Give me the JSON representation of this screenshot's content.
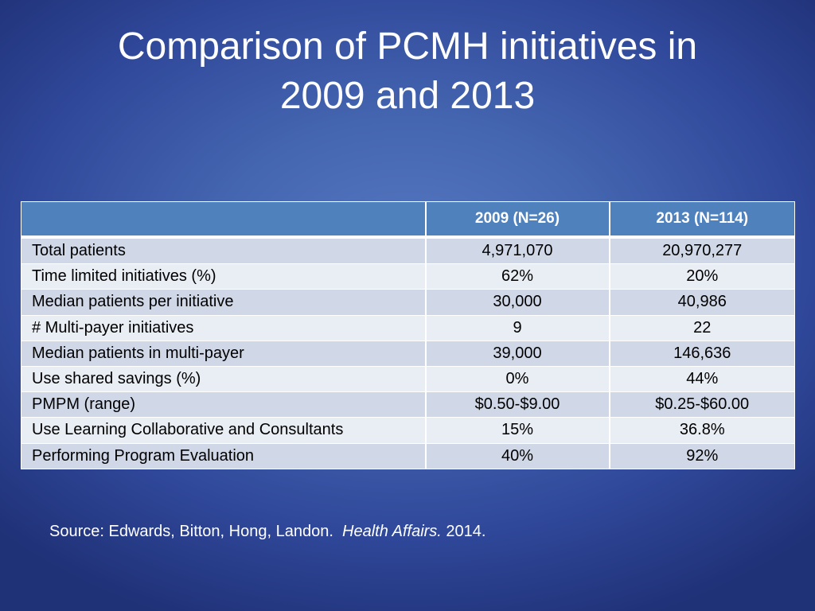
{
  "slide": {
    "title_line1": "Comparison of PCMH initiatives in",
    "title_line2": "2009 and 2013"
  },
  "table": {
    "headers": [
      "",
      "2009 (N=26)",
      "2013 (N=114)"
    ],
    "rows": [
      [
        "Total patients",
        "4,971,070",
        "20,970,277"
      ],
      [
        "Time limited initiatives (%)",
        "62%",
        "20%"
      ],
      [
        "Median patients per initiative",
        "30,000",
        "40,986"
      ],
      [
        "# Multi-payer initiatives",
        "9",
        "22"
      ],
      [
        "Median patients in multi-payer",
        "39,000",
        "146,636"
      ],
      [
        "Use shared savings (%)",
        "0%",
        "44%"
      ],
      [
        "PMPM (range)",
        "$0.50-$9.00",
        "$0.25-$60.00"
      ],
      [
        "Use Learning Collaborative and Consultants",
        "15%",
        "36.8%"
      ],
      [
        "Performing Program Evaluation",
        "40%",
        "92%"
      ]
    ]
  },
  "source": {
    "prefix": "Source: Edwards, Bitton, Hong, Landon.  ",
    "journal": "Health Affairs.",
    "year": " 2014."
  },
  "colors": {
    "background": "#4465b0",
    "header_fill": "#4f81bd",
    "row_band_dark": "#d0d8e8",
    "row_band_light": "#e9edf4",
    "title_text": "#ffffff"
  }
}
